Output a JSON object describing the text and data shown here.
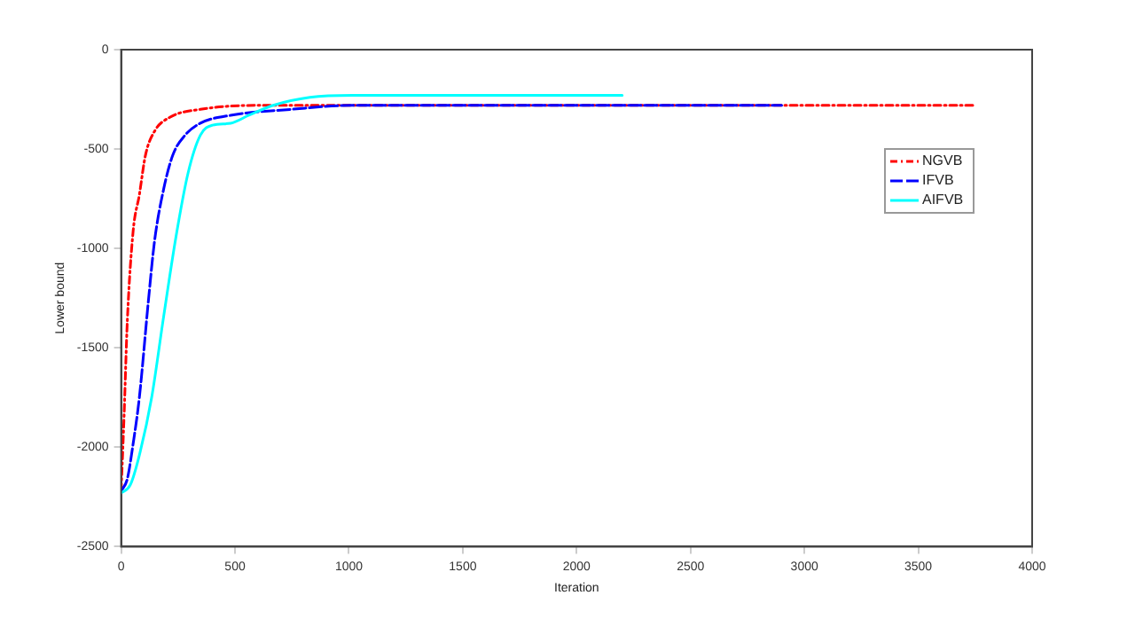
{
  "chart_data": {
    "type": "line",
    "xlabel": "Iteration",
    "ylabel": "Lower bound",
    "xlim": [
      0,
      4000
    ],
    "xticks": [
      0,
      500,
      1000,
      1500,
      2000,
      2500,
      3000,
      3500,
      4000
    ],
    "ylim": [
      -2500,
      0
    ],
    "yticks": [
      -2500,
      -2000,
      -1500,
      -1000,
      -500,
      0
    ],
    "grid": false,
    "legend": "right",
    "marker": "none",
    "series": [
      {
        "name": "NGVB",
        "color": "#ff0000",
        "line_style": "dotted",
        "x": [
          0,
          13,
          27,
          53,
          80,
          107,
          147,
          214,
          348,
          615,
          1016,
          2000,
          3750
        ],
        "values": [
          -2220,
          -1840,
          -1370,
          -910,
          -730,
          -530,
          -410,
          -340,
          -300,
          -280,
          -280,
          -280,
          -280
        ]
      },
      {
        "name": "IFVB",
        "color": "#0000ff",
        "line_style": "dashed",
        "x": [
          0,
          27,
          53,
          80,
          120,
          147,
          187,
          227,
          281,
          348,
          481,
          749,
          1016,
          2000,
          2900
        ],
        "values": [
          -2220,
          -2160,
          -1980,
          -1750,
          -1260,
          -960,
          -700,
          -530,
          -430,
          -370,
          -330,
          -300,
          -280,
          -280,
          -280
        ]
      },
      {
        "name": "AIFVB",
        "color": "#00ffff",
        "line_style": "solid",
        "x": [
          0,
          40,
          80,
          134,
          187,
          241,
          294,
          348,
          401,
          481,
          561,
          668,
          829,
          1016,
          1684,
          2200
        ],
        "values": [
          -2230,
          -2190,
          -2040,
          -1750,
          -1340,
          -940,
          -620,
          -430,
          -380,
          -370,
          -330,
          -280,
          -240,
          -230,
          -230,
          -230
        ]
      }
    ]
  }
}
